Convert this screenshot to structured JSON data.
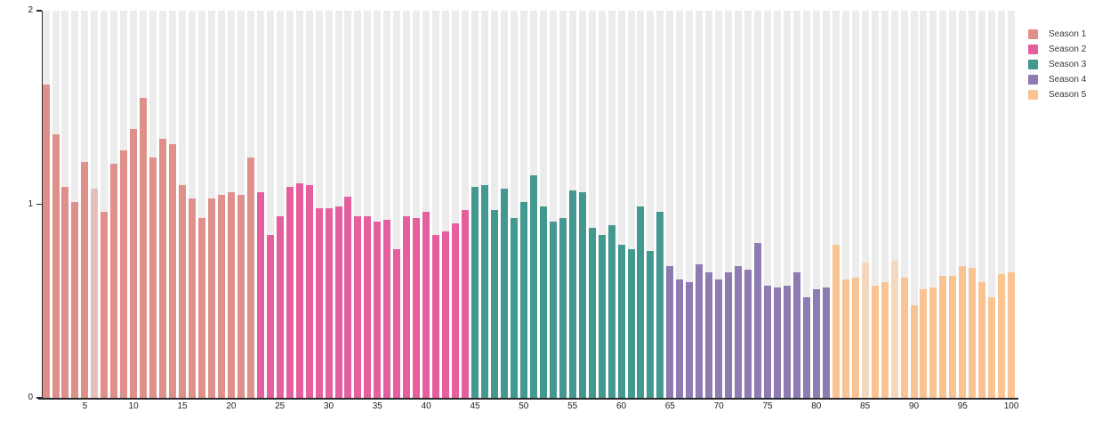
{
  "chart_data": {
    "type": "bar",
    "title": "",
    "xlabel": "",
    "ylabel": "",
    "ylim": [
      0,
      2
    ],
    "yticks": [
      0,
      1,
      2
    ],
    "xticks": [
      5,
      10,
      15,
      20,
      25,
      30,
      35,
      40,
      45,
      50,
      55,
      60,
      65,
      70,
      75,
      80,
      85,
      90,
      95,
      100
    ],
    "x_range": [
      1,
      100
    ],
    "grid": "off",
    "background_stripes": true,
    "stripe_color": "#ececec",
    "axis_color": "#2a2a2e",
    "tick_label_color": "#222222",
    "legend_position": "top-right",
    "series": [
      {
        "name": "Season 1",
        "color": "#e0908a",
        "x_start": 1,
        "values": [
          1.62,
          1.36,
          1.09,
          1.01,
          1.22,
          1.08,
          0.96,
          1.21,
          1.28,
          1.39,
          1.55,
          1.24,
          1.34,
          1.31,
          1.1,
          1.03,
          0.93,
          1.03,
          1.05,
          1.06,
          1.05,
          1.24
        ],
        "pale_bars_x": [
          6
        ]
      },
      {
        "name": "Season 2",
        "color": "#e55f9f",
        "x_start": 23,
        "values": [
          1.06,
          0.84,
          0.94,
          1.09,
          1.11,
          1.1,
          0.98,
          0.98,
          0.99,
          1.04,
          0.94,
          0.94,
          0.91,
          0.92,
          0.77,
          0.94,
          0.93,
          0.96,
          0.84,
          0.86,
          0.9,
          0.97
        ],
        "pale_bars_x": []
      },
      {
        "name": "Season 3",
        "color": "#43998f",
        "x_start": 45,
        "values": [
          1.09,
          1.1,
          0.97,
          1.08,
          0.93,
          1.01,
          1.15,
          0.99,
          0.91,
          0.93,
          1.07,
          1.06,
          0.88,
          0.84,
          0.89,
          0.79,
          0.77,
          0.99,
          0.76,
          0.96
        ],
        "pale_bars_x": []
      },
      {
        "name": "Season 4",
        "color": "#8d7bb2",
        "x_start": 65,
        "values": [
          0.68,
          0.61,
          0.6,
          0.69,
          0.65,
          0.61,
          0.65,
          0.68,
          0.66,
          0.8,
          0.58,
          0.57,
          0.58,
          0.65,
          0.52,
          0.56,
          0.57
        ],
        "pale_bars_x": []
      },
      {
        "name": "Season 5",
        "color": "#f9c392",
        "x_start": 82,
        "values": [
          0.79,
          0.61,
          0.62,
          0.7,
          0.58,
          0.6,
          0.71,
          0.62,
          0.48,
          0.56,
          0.57,
          0.63,
          0.63,
          0.68,
          0.67,
          0.6,
          0.52,
          0.64,
          0.65
        ],
        "pale_bars_x": [
          85,
          88
        ]
      }
    ]
  },
  "legend": {
    "items": [
      {
        "label": "Season 1",
        "color": "#e0908a"
      },
      {
        "label": "Season 2",
        "color": "#e55f9f"
      },
      {
        "label": "Season 3",
        "color": "#43998f"
      },
      {
        "label": "Season 4",
        "color": "#8d7bb2"
      },
      {
        "label": "Season 5",
        "color": "#f9c392"
      }
    ]
  }
}
